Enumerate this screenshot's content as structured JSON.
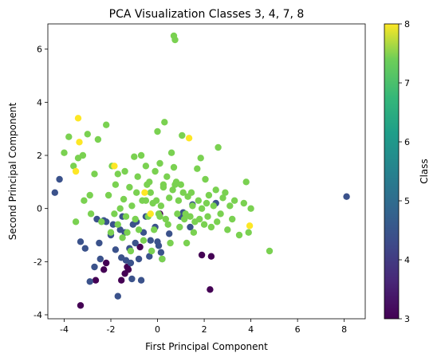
{
  "chart_data": {
    "type": "scatter",
    "title": "PCA Visualization Classes 3, 4, 7, 8",
    "xlabel": "First Principal Component",
    "ylabel": "Second Principal Component",
    "xlim": [
      -4.7,
      8.9
    ],
    "ylim": [
      -4.15,
      6.95
    ],
    "xticks": [
      -4,
      -2,
      0,
      2,
      4,
      6,
      8
    ],
    "yticks": [
      -4,
      -2,
      0,
      2,
      4,
      6
    ],
    "colorbar": {
      "label": "Class",
      "ticks": [
        3,
        4,
        5,
        6,
        7,
        8
      ],
      "range": [
        3,
        8
      ],
      "colormap": "viridis"
    },
    "colors": {
      "3": "#440154",
      "4": "#3b528b",
      "7": "#7ad151",
      "8": "#fde725"
    },
    "grid": false,
    "series": [
      {
        "class": 3,
        "x": [
          -3.3,
          -2.65,
          -2.2,
          -2.3,
          -1.55,
          -1.4,
          -1.3,
          -1.25,
          -0.75,
          0.1,
          1.9,
          2.25,
          2.3
        ],
        "y": [
          -3.65,
          -2.7,
          -2.05,
          -2.3,
          -2.7,
          -2.45,
          -2.2,
          -2.3,
          -1.45,
          -0.2,
          -1.75,
          -3.05,
          -1.8
        ]
      },
      {
        "class": 4,
        "x": [
          -4.4,
          -4.2,
          -3.3,
          -3.1,
          -2.9,
          -2.7,
          -2.6,
          -2.5,
          -2.45,
          -2.3,
          -2.2,
          -2.0,
          -1.9,
          -1.8,
          -1.7,
          -1.6,
          -1.55,
          -1.5,
          -1.4,
          -1.35,
          -1.2,
          -1.15,
          -1.1,
          -1.05,
          -0.95,
          -0.9,
          -0.8,
          -0.7,
          -0.6,
          -0.5,
          -0.35,
          -0.3,
          -0.1,
          0.0,
          0.05,
          0.15,
          0.2,
          0.5,
          1.0,
          1.1,
          1.4,
          1.5,
          2.5,
          8.1
        ],
        "y": [
          0.6,
          1.1,
          -1.25,
          -1.5,
          -2.75,
          -2.2,
          -0.4,
          -1.3,
          -1.9,
          -0.45,
          -0.5,
          -1.0,
          -0.6,
          -1.55,
          -3.3,
          -0.8,
          -1.85,
          -0.3,
          -0.9,
          -1.95,
          -1.5,
          -2.05,
          -2.65,
          -0.6,
          -1.3,
          -0.5,
          -1.9,
          -2.7,
          -0.9,
          -0.3,
          -1.8,
          -1.2,
          -0.7,
          -1.25,
          -1.4,
          -1.65,
          -1.9,
          -0.95,
          -0.3,
          -0.15,
          -0.7,
          0.15,
          0.2,
          0.45
        ]
      },
      {
        "class": 7,
        "x": [
          -4.0,
          -3.8,
          -3.6,
          -3.5,
          -3.4,
          -3.2,
          -3.15,
          -3.0,
          -2.9,
          -2.85,
          -2.7,
          -2.55,
          -2.4,
          -2.2,
          -2.1,
          -2.0,
          -1.95,
          -1.85,
          -1.8,
          -1.7,
          -1.6,
          -1.5,
          -1.45,
          -1.4,
          -1.35,
          -1.3,
          -1.2,
          -1.15,
          -1.1,
          -1.0,
          -0.95,
          -0.9,
          -0.85,
          -0.8,
          -0.7,
          -0.65,
          -0.6,
          -0.5,
          -0.45,
          -0.4,
          -0.35,
          -0.3,
          -0.25,
          -0.2,
          -0.15,
          -0.1,
          -0.05,
          0.0,
          0.05,
          0.1,
          0.15,
          0.2,
          0.25,
          0.3,
          0.35,
          0.4,
          0.45,
          0.5,
          0.55,
          0.6,
          0.65,
          0.7,
          0.75,
          0.8,
          0.85,
          0.9,
          0.95,
          1.0,
          1.05,
          1.1,
          1.15,
          1.2,
          1.25,
          1.3,
          1.4,
          1.45,
          1.5,
          1.55,
          1.6,
          1.7,
          1.75,
          1.8,
          1.85,
          1.9,
          2.0,
          2.05,
          2.1,
          2.15,
          2.2,
          2.3,
          2.4,
          2.5,
          2.55,
          2.6,
          2.7,
          2.8,
          2.9,
          3.0,
          3.1,
          3.2,
          3.3,
          3.5,
          3.7,
          3.8,
          3.9,
          4.0,
          4.8,
          0.7,
          0.75,
          -0.5,
          -1.7,
          0.25,
          0.1
        ],
        "y": [
          2.1,
          2.7,
          1.6,
          -0.5,
          1.9,
          2.0,
          0.3,
          2.8,
          0.5,
          -0.2,
          1.3,
          2.6,
          -0.5,
          3.15,
          0.5,
          -0.9,
          1.6,
          -0.2,
          0.9,
          -0.6,
          0.0,
          -1.1,
          0.35,
          1.4,
          -0.3,
          -0.9,
          0.8,
          -1.6,
          0.1,
          1.95,
          -0.4,
          0.6,
          1.2,
          -0.8,
          2.0,
          0.3,
          -1.2,
          1.6,
          0.9,
          -0.3,
          1.0,
          0.6,
          -1.6,
          0.2,
          -0.8,
          1.4,
          0.3,
          2.9,
          -0.2,
          1.7,
          0.1,
          -1.9,
          0.9,
          3.25,
          -0.4,
          1.2,
          -0.6,
          0.4,
          -1.3,
          2.1,
          0.7,
          6.5,
          6.35,
          1.0,
          -0.2,
          0.3,
          -0.7,
          0.9,
          2.75,
          0.6,
          -0.4,
          -0.2,
          -1.3,
          0.45,
          -0.3,
          0.6,
          0.1,
          -0.9,
          -0.5,
          1.5,
          0.3,
          -0.4,
          1.9,
          0.0,
          -0.6,
          1.1,
          0.2,
          -0.3,
          0.5,
          -0.7,
          0.1,
          0.7,
          -0.5,
          2.3,
          -0.2,
          0.4,
          0.6,
          -0.8,
          0.1,
          -0.4,
          0.3,
          -1.0,
          0.2,
          1.0,
          -0.9,
          0.0,
          -1.6,
          1.55,
          0.9,
          0.3,
          1.3,
          0.8,
          -0.3
        ]
      },
      {
        "class": 8,
        "x": [
          -3.4,
          -3.35,
          -3.5,
          -1.85,
          -0.55,
          1.35,
          3.95,
          -0.3
        ],
        "y": [
          3.4,
          2.5,
          1.4,
          1.6,
          0.6,
          2.65,
          -0.65,
          -0.2
        ]
      }
    ]
  }
}
